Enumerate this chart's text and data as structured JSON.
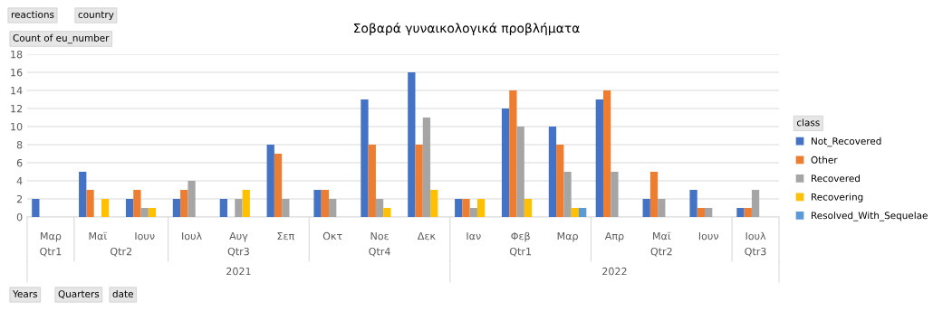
{
  "chart_data": {
    "type": "bar",
    "title": "Σοβαρά γυναικολογικά προβλήματα",
    "ylabel": "Count of eu_number",
    "legend_title": "class",
    "categories": [
      "Μαρ",
      "Μαϊ",
      "Ιουν",
      "Ιουλ",
      "Αυγ",
      "Σεπ",
      "Οκτ",
      "Νοε",
      "Δεκ",
      "Ιαν",
      "Φεβ",
      "Μαρ",
      "Απρ",
      "Μαϊ",
      "Ιουν",
      "Ιουλ"
    ],
    "series": [
      {
        "name": "Not_Recovered",
        "color": "#4472c4",
        "values": [
          2,
          5,
          2,
          2,
          2,
          8,
          3,
          13,
          16,
          2,
          12,
          10,
          13,
          2,
          3,
          1
        ]
      },
      {
        "name": "Other",
        "color": "#ed7d31",
        "values": [
          null,
          3,
          3,
          3,
          null,
          7,
          3,
          8,
          8,
          2,
          14,
          8,
          14,
          5,
          1,
          1
        ]
      },
      {
        "name": "Recovered",
        "color": "#a5a5a5",
        "values": [
          null,
          null,
          1,
          4,
          2,
          2,
          2,
          2,
          11,
          1,
          10,
          5,
          5,
          2,
          1,
          3
        ]
      },
      {
        "name": "Recovering",
        "color": "#ffc000",
        "values": [
          null,
          2,
          1,
          null,
          3,
          null,
          null,
          1,
          3,
          2,
          2,
          1,
          null,
          null,
          null,
          null
        ]
      },
      {
        "name": "Resolved_With_Sequelae",
        "color": "#5b9bd5",
        "values": [
          null,
          null,
          null,
          null,
          null,
          null,
          null,
          null,
          null,
          null,
          null,
          1,
          null,
          null,
          null,
          null
        ]
      }
    ],
    "ylim": [
      0,
      18
    ],
    "yticks": [
      0,
      2,
      4,
      6,
      8,
      10,
      12,
      14,
      16,
      18
    ],
    "grid": "y",
    "legend": "right",
    "annotations": [
      "reactions",
      "country",
      "Years",
      "Quarters",
      "date",
      "Qtr1",
      "Qtr2",
      "Qtr3",
      "Qtr4",
      "Qtr1",
      "Qtr2",
      "Qtr3",
      "2021",
      "2022"
    ]
  }
}
